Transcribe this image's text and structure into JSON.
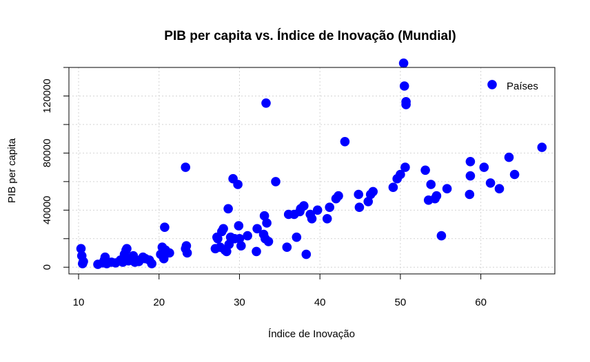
{
  "chart_data": {
    "type": "scatter",
    "title": "PIB per capita vs. Índice de Inovação (Mundial)",
    "xlabel": "Índice de Inovação",
    "ylabel": "PIB per capita",
    "xlim": [
      8.8,
      69.2
    ],
    "ylim": [
      -4700,
      140000
    ],
    "x_ticks": [
      10,
      20,
      30,
      40,
      50,
      60
    ],
    "y_ticks": [
      0,
      40000,
      80000,
      120000
    ],
    "y_minor_ticks": [
      20000,
      60000,
      100000,
      140000
    ],
    "grid": true,
    "legend_position": "top-right",
    "colors": {
      "points": "#0000ff",
      "grid": "#d3d3d3"
    },
    "series": [
      {
        "name": "Países",
        "x": [
          10.3,
          10.4,
          10.5,
          10.6,
          12.4,
          13.0,
          13.2,
          13.3,
          13.5,
          14.1,
          14.6,
          15.2,
          15.5,
          15.7,
          15.9,
          16.0,
          16.2,
          16.5,
          16.8,
          17.0,
          17.2,
          17.5,
          18.0,
          18.3,
          18.8,
          19.1,
          20.2,
          20.4,
          20.6,
          20.7,
          20.8,
          21.3,
          23.3,
          23.3,
          23.4,
          23.5,
          27.0,
          27.2,
          27.3,
          27.6,
          27.8,
          28.0,
          28.2,
          28.4,
          28.6,
          28.7,
          28.9,
          29.2,
          29.4,
          29.8,
          29.9,
          30.0,
          30.2,
          31.0,
          32.1,
          32.2,
          33.0,
          33.1,
          33.2,
          33.3,
          33.4,
          33.6,
          34.5,
          35.9,
          36.1,
          36.8,
          37.1,
          37.5,
          37.6,
          38.0,
          38.3,
          38.8,
          39.0,
          39.7,
          40.9,
          41.2,
          42.0,
          42.3,
          43.1,
          44.8,
          44.9,
          46.0,
          46.3,
          46.6,
          49.1,
          49.6,
          50.0,
          50.4,
          50.5,
          50.6,
          50.7,
          50.7,
          53.1,
          53.5,
          53.8,
          54.3,
          54.5,
          55.1,
          55.8,
          58.6,
          58.7,
          58.7,
          60.4,
          61.2,
          61.4,
          62.3,
          63.5,
          64.2,
          67.6
        ],
        "y": [
          13000,
          8000,
          2500,
          4000,
          2000,
          3000,
          5000,
          7000,
          2500,
          3500,
          3000,
          5000,
          3500,
          9000,
          12000,
          13000,
          4500,
          6000,
          8000,
          3500,
          5000,
          4000,
          7000,
          6000,
          5000,
          2500,
          9000,
          14000,
          6000,
          28000,
          12000,
          10000,
          70000,
          13000,
          15000,
          10000,
          13000,
          21000,
          20000,
          14000,
          25000,
          27000,
          12000,
          11000,
          41000,
          16000,
          21000,
          62000,
          20000,
          58000,
          29000,
          20000,
          15000,
          22000,
          11000,
          27000,
          23000,
          36000,
          20000,
          115000,
          31000,
          18000,
          60000,
          14000,
          37000,
          37000,
          21000,
          39000,
          41000,
          43000,
          9000,
          37000,
          34000,
          40000,
          34000,
          42000,
          48000,
          50000,
          88000,
          51000,
          42000,
          46000,
          51000,
          53000,
          56000,
          62000,
          65000,
          143000,
          127000,
          70000,
          114000,
          116000,
          68000,
          47000,
          58000,
          48000,
          50000,
          22000,
          55000,
          51000,
          74000,
          64000,
          70000,
          59000,
          128000,
          55000,
          77000,
          65000,
          84000
        ]
      }
    ]
  }
}
